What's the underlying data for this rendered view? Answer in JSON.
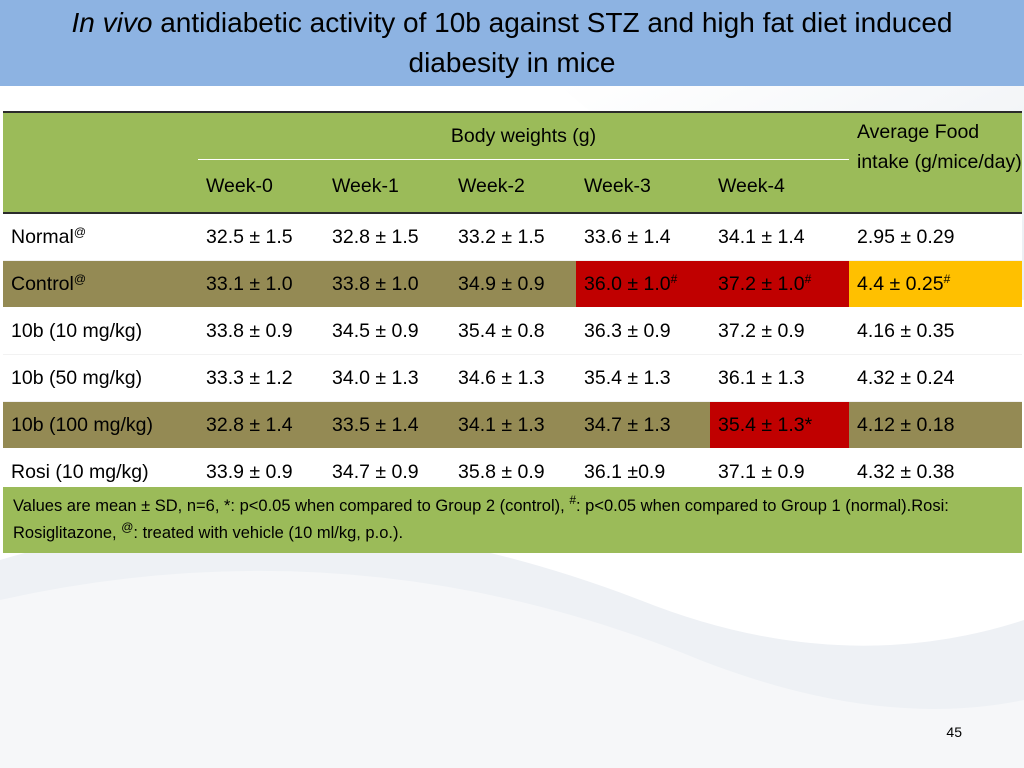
{
  "slide": {
    "title_italic": "In vivo",
    "title_rest": "antidiabetic activity of 10b against STZ and high fat diet induced",
    "title_line2": "diabesity in mice",
    "page_number": "45"
  },
  "table": {
    "group_header": "Body weights (g)",
    "food_header": "Average Food intake (g/mice/day)",
    "weeks": [
      "Week-0",
      "Week-1",
      "Week-2",
      "Week-3",
      "Week-4"
    ],
    "rows": [
      {
        "group": "Normal",
        "mark": "@",
        "cells": [
          "32.5 ± 1.5",
          "32.8 ± 1.5",
          "33.2 ± 1.5",
          "33.6 ± 1.4",
          "34.1 ± 1.4"
        ],
        "food": "2.95 ± 0.29"
      },
      {
        "group": "Control",
        "mark": "@",
        "cells": [
          "33.1 ± 1.0",
          "33.8 ± 1.0",
          "34.9 ± 0.9",
          "36.0 ± 1.0",
          "37.2 ± 1.0"
        ],
        "cell_marks": [
          "",
          "",
          "",
          "#",
          "#"
        ],
        "food": "4.4 ± 0.25",
        "food_mark": "#"
      },
      {
        "group": "10b (10 mg/kg)",
        "cells": [
          "33.8 ± 0.9",
          "34.5 ± 0.9",
          "35.4 ± 0.8",
          "36.3 ± 0.9",
          "37.2 ± 0.9"
        ],
        "food": "4.16 ± 0.35"
      },
      {
        "group": "10b (50 mg/kg)",
        "cells": [
          "33.3 ± 1.2",
          "34.0 ± 1.3",
          "34.6 ± 1.3",
          "35.4 ± 1.3",
          "36.1 ± 1.3"
        ],
        "food": "4.32 ± 0.24"
      },
      {
        "group": "10b (100 mg/kg)",
        "cells": [
          "32.8 ± 1.4",
          "33.5 ± 1.4",
          "34.1 ± 1.3",
          "34.7 ± 1.3",
          "35.4 ± 1.3*"
        ],
        "food": "4.12 ± 0.18"
      },
      {
        "group": "Rosi (10 mg/kg)",
        "cells": [
          "33.9 ± 0.9",
          "34.7 ± 0.9",
          "35.8 ± 0.9",
          "36.1 ±0.9",
          "37.1 ± 0.9"
        ],
        "food": "4.32 ± 0.38"
      }
    ]
  },
  "footnote": {
    "part1": "Values are mean ± SD, n=6, *: p<0.05 when compared to Group 2 (control), ",
    "mark1": "#",
    "part2": ": p<0.05 when compared to Group 1 (normal).Rosi: Rosiglitazone, ",
    "mark2": "@",
    "part3": ": treated with vehicle (10 ml/kg, p.o.)."
  },
  "colors": {
    "title_bar": "#8db3e2",
    "header_green": "#9bbb59",
    "olive_row": "#948a54",
    "significant_red": "#c00000",
    "highlight_amber": "#ffc000"
  }
}
